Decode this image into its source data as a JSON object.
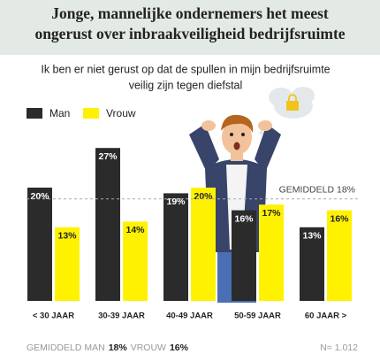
{
  "chart_data": {
    "type": "bar",
    "title": [
      "Jonge, mannelijke ondernemers het meest",
      "ongerust over inbraakveiligheid bedrijfsruimte"
    ],
    "subtitle": [
      "Ik ben er niet gerust op dat de spullen in mijn bedrijfsruimte",
      "veilig zijn tegen diefstal"
    ],
    "categories": [
      "< 30 JAAR",
      "30-39 JAAR",
      "40-49 JAAR",
      "50-59 JAAR",
      "60 JAAR >"
    ],
    "series": [
      {
        "name": "Man",
        "color": "#2b2b2b",
        "values": [
          20,
          27,
          19,
          16,
          13
        ],
        "value_labels": [
          "20%",
          "27%",
          "19%",
          "16%",
          "13%"
        ]
      },
      {
        "name": "Vrouw",
        "color": "#fff200",
        "values": [
          13,
          14,
          20,
          17,
          16
        ],
        "value_labels": [
          "13%",
          "14%",
          "20%",
          "17%",
          "16%"
        ]
      }
    ],
    "reference_line": {
      "value": 18,
      "label": "GEMIDDELD 18%"
    },
    "footer": {
      "man_label": "GEMIDDELD MAN",
      "man_value": "18%",
      "woman_label": "VROUW",
      "woman_value": "16%",
      "sample": "N= 1.012"
    }
  }
}
